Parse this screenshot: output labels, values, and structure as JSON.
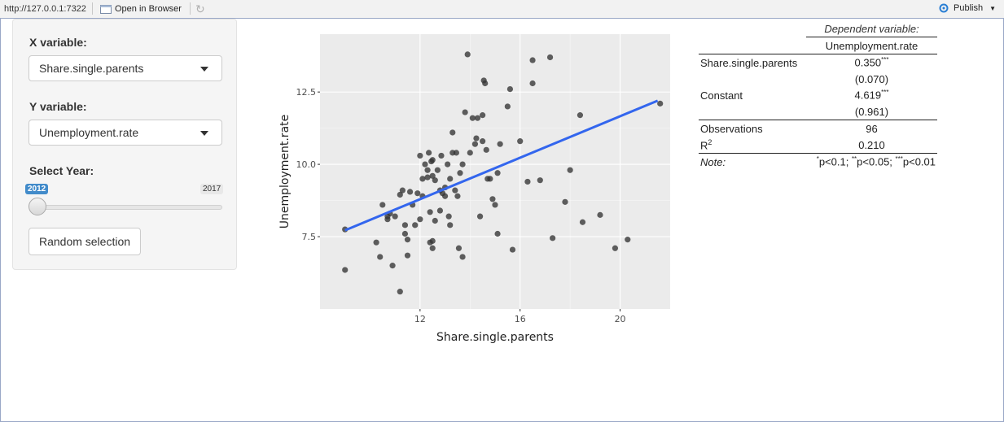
{
  "viewer": {
    "url": "http://127.0.0.1:7322",
    "open_in_browser": "Open in Browser",
    "publish": "Publish"
  },
  "sidebar": {
    "x_label": "X variable:",
    "x_value": "Share.single.parents",
    "y_label": "Y variable:",
    "y_value": "Unemployment.rate",
    "year_label": "Select Year:",
    "year_min": "2012",
    "year_max": "2017",
    "year_value": 2012,
    "random_button": "Random selection"
  },
  "chart_data": {
    "type": "scatter",
    "xlabel": "Share.single.parents",
    "ylabel": "Unemployment.rate",
    "x_ticks": [
      "12",
      "16",
      "20"
    ],
    "y_ticks": [
      "7.5",
      "10.0",
      "12.5"
    ],
    "xlim": [
      8.0,
      22.0
    ],
    "ylim": [
      5.0,
      14.5
    ],
    "grid": true,
    "colors": {
      "points": "#333333",
      "line": "#3366ee",
      "panel": "#ebebeb"
    },
    "fit_line": {
      "x": [
        9.0,
        21.5
      ],
      "y": [
        7.72,
        12.2
      ]
    },
    "points": [
      [
        9.0,
        7.75
      ],
      [
        9.0,
        6.35
      ],
      [
        10.25,
        7.3
      ],
      [
        10.4,
        6.8
      ],
      [
        10.5,
        8.6
      ],
      [
        10.7,
        8.2
      ],
      [
        10.7,
        8.1
      ],
      [
        10.8,
        8.3
      ],
      [
        10.9,
        6.5
      ],
      [
        11.0,
        8.2
      ],
      [
        11.2,
        5.6
      ],
      [
        11.2,
        8.95
      ],
      [
        11.3,
        9.1
      ],
      [
        11.4,
        7.6
      ],
      [
        11.4,
        7.9
      ],
      [
        11.5,
        6.85
      ],
      [
        11.5,
        7.4
      ],
      [
        11.6,
        9.05
      ],
      [
        11.7,
        8.6
      ],
      [
        11.8,
        7.9
      ],
      [
        11.9,
        9.0
      ],
      [
        12.0,
        10.3
      ],
      [
        12.0,
        8.1
      ],
      [
        12.1,
        9.5
      ],
      [
        12.1,
        8.9
      ],
      [
        12.2,
        10.0
      ],
      [
        12.3,
        9.8
      ],
      [
        12.3,
        9.55
      ],
      [
        12.35,
        10.4
      ],
      [
        12.4,
        8.35
      ],
      [
        12.4,
        7.3
      ],
      [
        12.45,
        10.1
      ],
      [
        12.5,
        9.6
      ],
      [
        12.5,
        10.15
      ],
      [
        12.5,
        7.1
      ],
      [
        12.6,
        9.45
      ],
      [
        12.6,
        8.05
      ],
      [
        12.7,
        9.8
      ],
      [
        12.8,
        9.1
      ],
      [
        12.8,
        8.4
      ],
      [
        12.85,
        10.3
      ],
      [
        12.9,
        9.0
      ],
      [
        13.0,
        9.2
      ],
      [
        13.0,
        8.9
      ],
      [
        13.1,
        10.0
      ],
      [
        13.15,
        8.2
      ],
      [
        13.2,
        9.5
      ],
      [
        13.2,
        7.9
      ],
      [
        13.3,
        10.4
      ],
      [
        13.3,
        11.1
      ],
      [
        13.4,
        9.1
      ],
      [
        13.45,
        10.4
      ],
      [
        13.5,
        8.9
      ],
      [
        13.55,
        7.1
      ],
      [
        13.6,
        9.7
      ],
      [
        13.7,
        10.0
      ],
      [
        13.8,
        11.8
      ],
      [
        13.9,
        13.8
      ],
      [
        14.0,
        10.4
      ],
      [
        14.1,
        11.6
      ],
      [
        14.2,
        10.7
      ],
      [
        14.25,
        10.9
      ],
      [
        14.3,
        11.6
      ],
      [
        14.4,
        8.2
      ],
      [
        14.5,
        11.7
      ],
      [
        14.5,
        10.8
      ],
      [
        14.55,
        12.9
      ],
      [
        14.6,
        12.8
      ],
      [
        14.65,
        10.5
      ],
      [
        14.7,
        9.5
      ],
      [
        14.8,
        9.5
      ],
      [
        14.9,
        8.8
      ],
      [
        15.0,
        8.6
      ],
      [
        15.1,
        9.7
      ],
      [
        15.1,
        7.6
      ],
      [
        15.2,
        10.7
      ],
      [
        15.5,
        12.0
      ],
      [
        15.6,
        12.6
      ],
      [
        15.7,
        7.05
      ],
      [
        16.0,
        10.8
      ],
      [
        16.3,
        9.4
      ],
      [
        16.5,
        12.8
      ],
      [
        16.5,
        13.6
      ],
      [
        16.8,
        9.45
      ],
      [
        17.2,
        13.7
      ],
      [
        17.3,
        7.45
      ],
      [
        17.8,
        8.7
      ],
      [
        18.0,
        9.8
      ],
      [
        18.4,
        11.7
      ],
      [
        18.5,
        8.0
      ],
      [
        19.2,
        8.25
      ],
      [
        19.8,
        7.1
      ],
      [
        20.3,
        7.4
      ],
      [
        21.6,
        12.1
      ],
      [
        13.7,
        6.8
      ],
      [
        12.5,
        7.35
      ]
    ]
  },
  "regression": {
    "dep_var_header": "Dependent variable:",
    "dep_var": "Unemployment.rate",
    "rows": [
      {
        "label": "Share.single.parents",
        "value": "0.350",
        "stars": "***"
      },
      {
        "label": "",
        "value": "(0.070)",
        "stars": ""
      },
      {
        "label": "Constant",
        "value": "4.619",
        "stars": "***"
      },
      {
        "label": "",
        "value": "(0.961)",
        "stars": ""
      }
    ],
    "observations_label": "Observations",
    "observations_value": "96",
    "r2_label": "R",
    "r2_sup": "2",
    "r2_value": "0.210",
    "note_label": "Note:",
    "note_p1": "p<0.1; ",
    "note_p2": "p<0.05; ",
    "note_p3": "p<0.01",
    "note_s1": "*",
    "note_s2": "**",
    "note_s3": "***"
  }
}
